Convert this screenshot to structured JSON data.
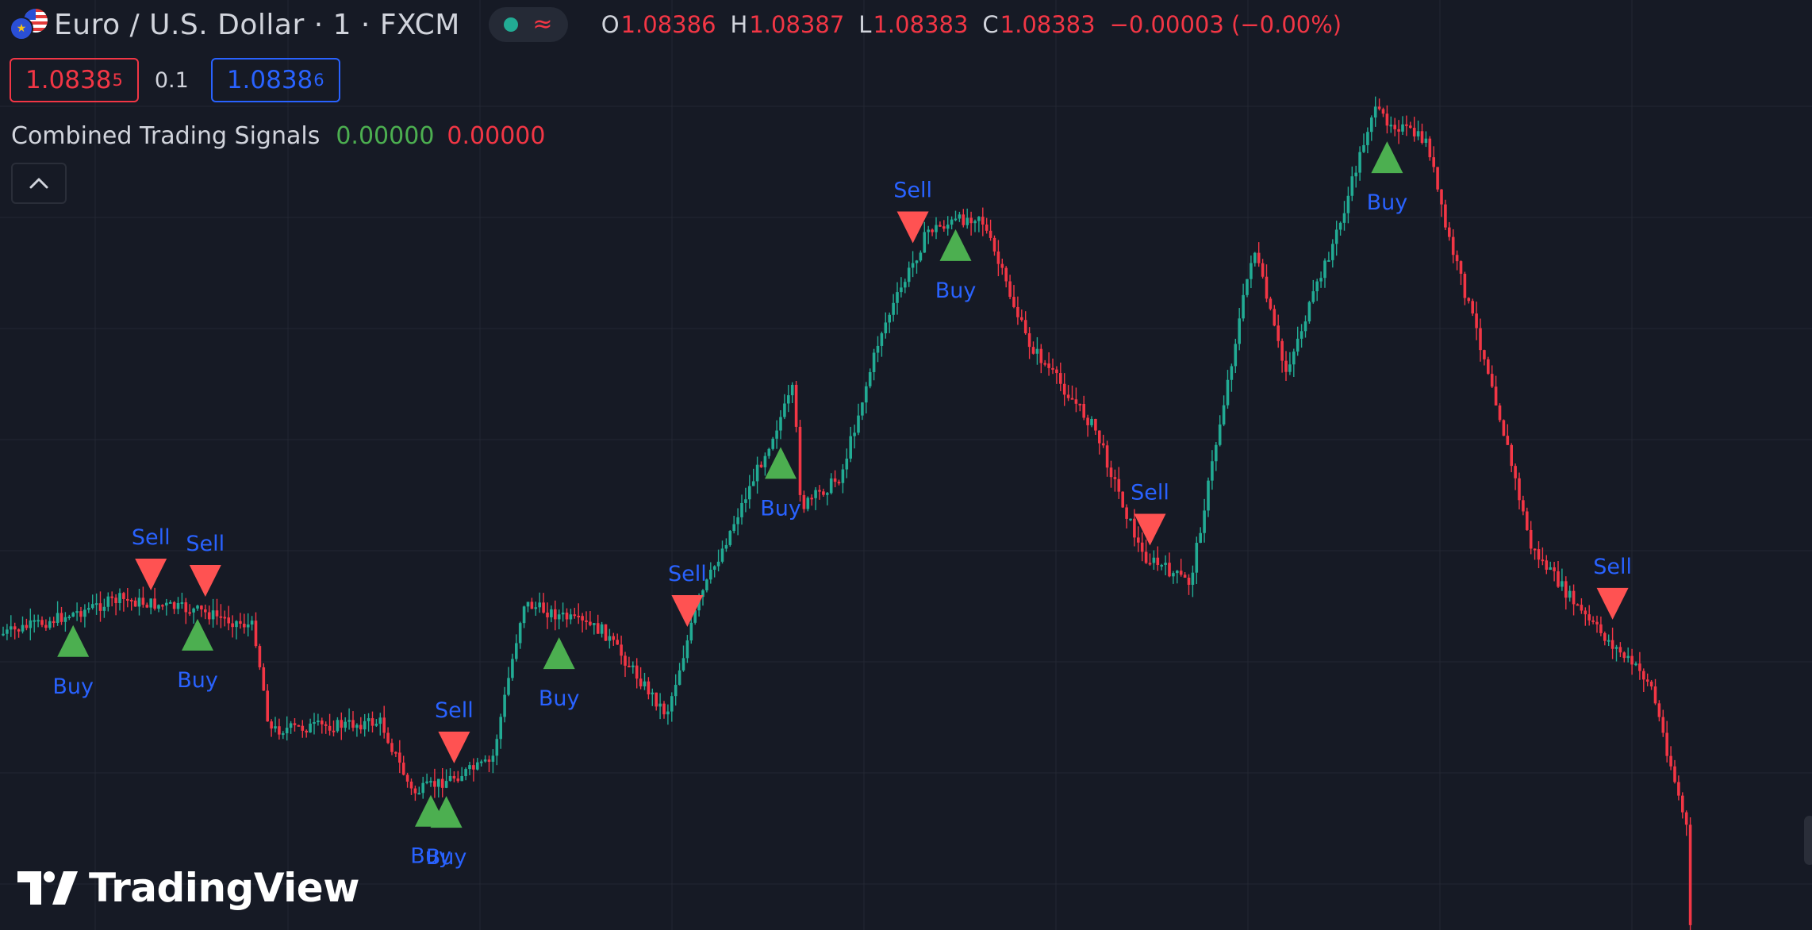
{
  "header": {
    "symbol_title": "Euro / U.S. Dollar · 1 · FXCM",
    "ohlc": {
      "o_label": "O",
      "o_value": "1.08386",
      "h_label": "H",
      "h_value": "1.08387",
      "l_label": "L",
      "l_value": "1.08383",
      "c_label": "C",
      "c_value": "1.08383",
      "change": "−0.00003 (−0.00%)"
    }
  },
  "trade": {
    "sell_price_main": "1.0838",
    "sell_price_sup": "5",
    "spread": "0.1",
    "buy_price_main": "1.0838",
    "buy_price_sup": "6"
  },
  "indicator": {
    "name": "Combined Trading Signals",
    "value1": "0.00000",
    "value2": "0.00000"
  },
  "brand": {
    "logo_text": "TradingView"
  },
  "icons": [
    "eurusd-flag-icon",
    "market-status-icon",
    "chevron-up-icon",
    "tradingview-logo-icon"
  ],
  "colors": {
    "background": "#161a25",
    "grid": "#232732",
    "up_candle": "#22ab94",
    "down_candle": "#f23645",
    "buy_marker": "#4caf50",
    "sell_marker": "#ff5252",
    "signal_label": "#2962ff"
  },
  "signals": [
    {
      "type": "buy",
      "label": "Buy",
      "candle": 18
    },
    {
      "type": "sell",
      "label": "Sell",
      "candle": 38
    },
    {
      "type": "buy",
      "label": "Buy",
      "candle": 50
    },
    {
      "type": "sell",
      "label": "Sell",
      "candle": 52
    },
    {
      "type": "sell",
      "label": "Sell",
      "candle": 116
    },
    {
      "type": "buy",
      "label": "Buy",
      "candle": 110
    },
    {
      "type": "buy",
      "label": "Buy",
      "candle": 114
    },
    {
      "type": "buy",
      "label": "Buy",
      "candle": 143
    },
    {
      "type": "sell",
      "label": "Sell",
      "candle": 176
    },
    {
      "type": "buy",
      "label": "Buy",
      "candle": 200
    },
    {
      "type": "sell",
      "label": "Sell",
      "candle": 234
    },
    {
      "type": "buy",
      "label": "Buy",
      "candle": 245
    },
    {
      "type": "sell",
      "label": "Sell",
      "candle": 295
    },
    {
      "type": "buy",
      "label": "Buy",
      "candle": 356
    },
    {
      "type": "sell",
      "label": "Sell",
      "candle": 414
    }
  ]
}
